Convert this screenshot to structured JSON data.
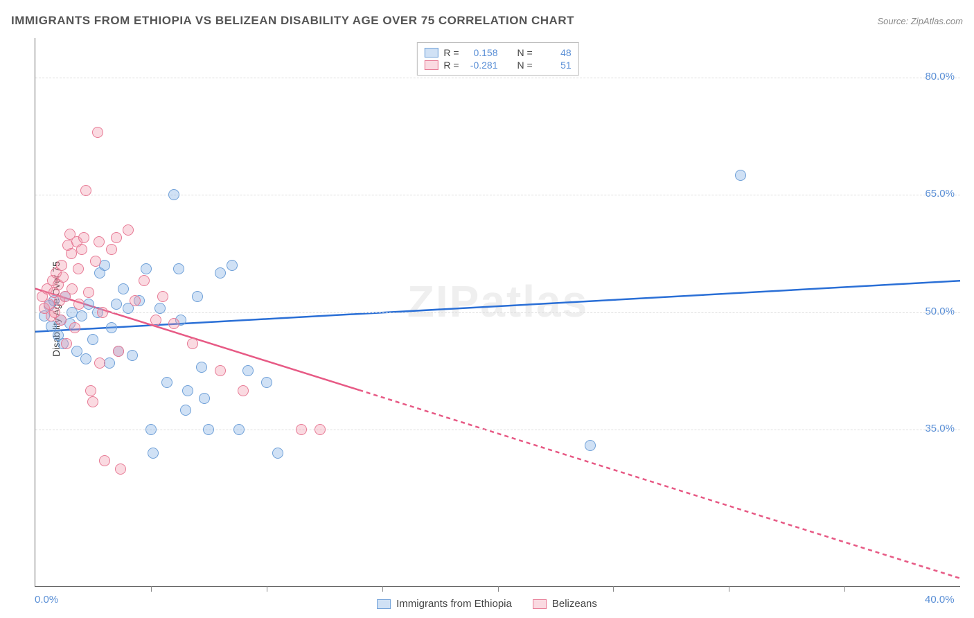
{
  "title": "IMMIGRANTS FROM ETHIOPIA VS BELIZEAN DISABILITY AGE OVER 75 CORRELATION CHART",
  "source_prefix": "Source: ",
  "source_name": "ZipAtlas.com",
  "y_axis_label": "Disability Age Over 75",
  "watermark": "ZIPatlas",
  "chart": {
    "type": "scatter",
    "background_color": "#ffffff",
    "grid_color": "#dddddd",
    "axis_color": "#666666",
    "tick_label_color": "#5a8fd6",
    "x_range": [
      0,
      40
    ],
    "y_range": [
      15,
      85
    ],
    "x_ticks_minor": [
      5,
      10,
      15,
      20,
      25,
      30,
      35
    ],
    "x_tick_labels": [
      {
        "v": 0,
        "label": "0.0%"
      },
      {
        "v": 40,
        "label": "40.0%"
      }
    ],
    "y_tick_labels": [
      {
        "v": 35,
        "label": "35.0%"
      },
      {
        "v": 50,
        "label": "50.0%"
      },
      {
        "v": 65,
        "label": "65.0%"
      },
      {
        "v": 80,
        "label": "80.0%"
      }
    ],
    "marker_radius": 8,
    "marker_stroke_width": 1.5,
    "series": [
      {
        "name": "Immigrants from Ethiopia",
        "fill": "rgba(120,170,225,0.35)",
        "stroke": "#6fa0d8",
        "line_color": "#2a6fd6",
        "line_width": 2.5,
        "trend": {
          "x1": 0,
          "y1": 47.5,
          "x2": 40,
          "y2": 54.0,
          "dash_from_x": null
        },
        "stats": {
          "R": "0.158",
          "N": "48"
        },
        "points": [
          [
            0.4,
            49.5
          ],
          [
            0.6,
            50.8
          ],
          [
            0.7,
            48.2
          ],
          [
            0.8,
            51.5
          ],
          [
            1.0,
            47.0
          ],
          [
            1.1,
            49.0
          ],
          [
            1.2,
            46.0
          ],
          [
            1.3,
            52.0
          ],
          [
            1.5,
            48.5
          ],
          [
            1.6,
            50.0
          ],
          [
            1.8,
            45.0
          ],
          [
            2.0,
            49.5
          ],
          [
            2.2,
            44.0
          ],
          [
            2.3,
            51.0
          ],
          [
            2.5,
            46.5
          ],
          [
            2.7,
            50.0
          ],
          [
            2.8,
            55.0
          ],
          [
            3.0,
            56.0
          ],
          [
            3.2,
            43.5
          ],
          [
            3.3,
            48.0
          ],
          [
            3.5,
            51.0
          ],
          [
            3.6,
            45.0
          ],
          [
            3.8,
            53.0
          ],
          [
            4.0,
            50.5
          ],
          [
            4.2,
            44.5
          ],
          [
            4.5,
            51.5
          ],
          [
            4.8,
            55.5
          ],
          [
            5.0,
            35.0
          ],
          [
            5.1,
            32.0
          ],
          [
            5.4,
            50.5
          ],
          [
            5.7,
            41.0
          ],
          [
            6.0,
            65.0
          ],
          [
            6.2,
            55.5
          ],
          [
            6.3,
            49.0
          ],
          [
            6.5,
            37.5
          ],
          [
            6.6,
            40.0
          ],
          [
            7.0,
            52.0
          ],
          [
            7.2,
            43.0
          ],
          [
            7.3,
            39.0
          ],
          [
            7.5,
            35.0
          ],
          [
            8.0,
            55.0
          ],
          [
            8.5,
            56.0
          ],
          [
            8.8,
            35.0
          ],
          [
            9.2,
            42.5
          ],
          [
            10.0,
            41.0
          ],
          [
            10.5,
            32.0
          ],
          [
            24.0,
            33.0
          ],
          [
            30.5,
            67.5
          ]
        ]
      },
      {
        "name": "Belizeans",
        "fill": "rgba(240,150,170,0.35)",
        "stroke": "#e77a95",
        "line_color": "#e75a85",
        "line_width": 2.5,
        "trend": {
          "x1": 0,
          "y1": 53.0,
          "x2": 40,
          "y2": 16.0,
          "dash_from_x": 14.0
        },
        "stats": {
          "R": "-0.281",
          "N": "51"
        },
        "points": [
          [
            0.3,
            52.0
          ],
          [
            0.4,
            50.5
          ],
          [
            0.5,
            53.0
          ],
          [
            0.6,
            51.0
          ],
          [
            0.7,
            49.5
          ],
          [
            0.75,
            54.0
          ],
          [
            0.8,
            52.5
          ],
          [
            0.85,
            50.0
          ],
          [
            0.9,
            55.0
          ],
          [
            1.0,
            53.5
          ],
          [
            1.05,
            51.5
          ],
          [
            1.1,
            49.0
          ],
          [
            1.15,
            56.0
          ],
          [
            1.2,
            54.5
          ],
          [
            1.3,
            52.0
          ],
          [
            1.35,
            46.0
          ],
          [
            1.4,
            58.5
          ],
          [
            1.5,
            60.0
          ],
          [
            1.55,
            57.5
          ],
          [
            1.6,
            53.0
          ],
          [
            1.7,
            48.0
          ],
          [
            1.8,
            59.0
          ],
          [
            1.85,
            55.5
          ],
          [
            1.9,
            51.0
          ],
          [
            2.0,
            58.0
          ],
          [
            2.1,
            59.5
          ],
          [
            2.2,
            65.5
          ],
          [
            2.3,
            52.5
          ],
          [
            2.4,
            40.0
          ],
          [
            2.5,
            38.5
          ],
          [
            2.6,
            56.5
          ],
          [
            2.7,
            73.0
          ],
          [
            2.75,
            59.0
          ],
          [
            2.8,
            43.5
          ],
          [
            2.9,
            50.0
          ],
          [
            3.0,
            31.0
          ],
          [
            3.3,
            58.0
          ],
          [
            3.5,
            59.5
          ],
          [
            3.6,
            45.0
          ],
          [
            3.7,
            30.0
          ],
          [
            4.0,
            60.5
          ],
          [
            4.3,
            51.5
          ],
          [
            4.7,
            54.0
          ],
          [
            5.2,
            49.0
          ],
          [
            5.5,
            52.0
          ],
          [
            6.0,
            48.5
          ],
          [
            6.8,
            46.0
          ],
          [
            8.0,
            42.5
          ],
          [
            9.0,
            40.0
          ],
          [
            11.5,
            35.0
          ],
          [
            12.3,
            35.0
          ]
        ]
      }
    ]
  },
  "stat_box": {
    "rows": [
      {
        "series": 0,
        "r_label": "R =",
        "n_label": "N ="
      },
      {
        "series": 1,
        "r_label": "R =",
        "n_label": "N ="
      }
    ]
  }
}
